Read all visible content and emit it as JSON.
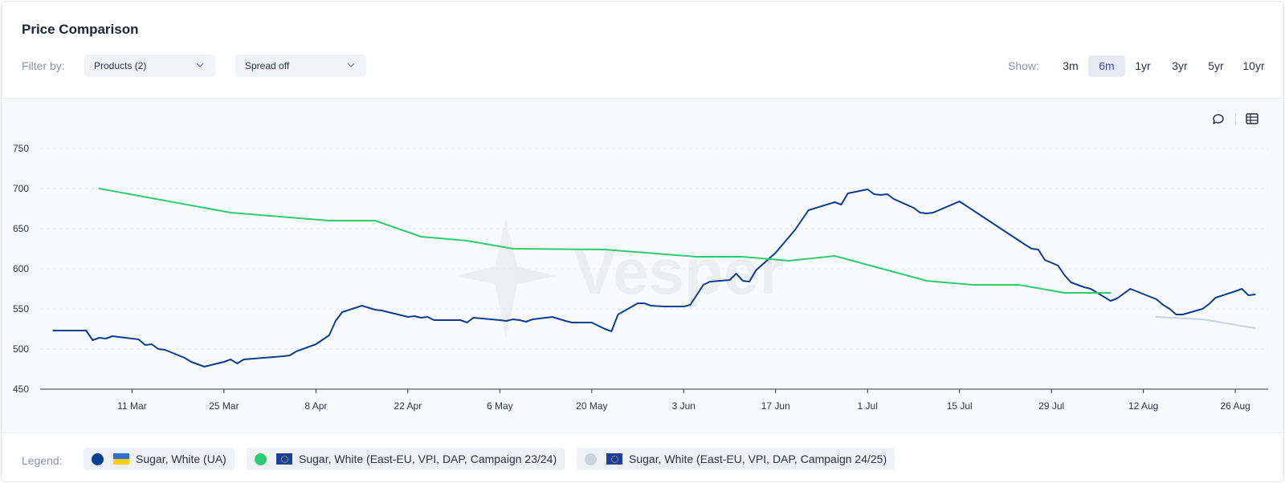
{
  "header": {
    "title": "Price Comparison",
    "filter_label": "Filter by:",
    "products_dropdown": "Products (2)",
    "spread_dropdown": "Spread off",
    "show_label": "Show:",
    "ranges": [
      "3m",
      "6m",
      "1yr",
      "3yr",
      "5yr",
      "10yr"
    ],
    "active_range": "6m"
  },
  "toolbar": {
    "icons": [
      "comment-icon",
      "table-icon"
    ]
  },
  "legend": {
    "label": "Legend:",
    "items": [
      {
        "name": "Sugar, White (UA)",
        "color": "#0b3d91",
        "flag": "ua-flag"
      },
      {
        "name": "Sugar, White (East-EU, VPI, DAP, Campaign 23/24)",
        "color": "#2ecc71",
        "flag": "eu-flag"
      },
      {
        "name": "Sugar, White (East-EU, VPI, DAP, Campaign 24/25)",
        "color": "#c9d3e0",
        "flag": "eu-flag"
      }
    ]
  },
  "watermark": "Vesper",
  "chart_data": {
    "type": "line",
    "title": "",
    "xlabel": "",
    "ylabel": "",
    "ylim": [
      450,
      750
    ],
    "yticks": [
      450,
      500,
      550,
      600,
      650,
      700,
      750
    ],
    "xlim": [
      "2024-02-26",
      "2024-08-31"
    ],
    "xticks": [
      {
        "date": "2024-03-11",
        "label": "11 Mar"
      },
      {
        "date": "2024-03-25",
        "label": "25 Mar"
      },
      {
        "date": "2024-04-08",
        "label": "8 Apr"
      },
      {
        "date": "2024-04-22",
        "label": "22 Apr"
      },
      {
        "date": "2024-05-06",
        "label": "6 May"
      },
      {
        "date": "2024-05-20",
        "label": "20 May"
      },
      {
        "date": "2024-06-03",
        "label": "3 Jun"
      },
      {
        "date": "2024-06-17",
        "label": "17 Jun"
      },
      {
        "date": "2024-07-01",
        "label": "1 Jul"
      },
      {
        "date": "2024-07-15",
        "label": "15 Jul"
      },
      {
        "date": "2024-07-29",
        "label": "29 Jul"
      },
      {
        "date": "2024-08-12",
        "label": "12 Aug"
      },
      {
        "date": "2024-08-26",
        "label": "26 Aug"
      }
    ],
    "grid": true,
    "legend_position": "bottom",
    "series": [
      {
        "name": "Sugar, White (UA)",
        "color": "#0b3d91",
        "points": [
          [
            "2024-02-28",
            523
          ],
          [
            "2024-03-02",
            523
          ],
          [
            "2024-03-04",
            523
          ],
          [
            "2024-03-05",
            511
          ],
          [
            "2024-03-06",
            514
          ],
          [
            "2024-03-07",
            513
          ],
          [
            "2024-03-08",
            516
          ],
          [
            "2024-03-10",
            514
          ],
          [
            "2024-03-12",
            512
          ],
          [
            "2024-03-13",
            505
          ],
          [
            "2024-03-14",
            506
          ],
          [
            "2024-03-15",
            500
          ],
          [
            "2024-03-16",
            499
          ],
          [
            "2024-03-19",
            489
          ],
          [
            "2024-03-20",
            484
          ],
          [
            "2024-03-22",
            478
          ],
          [
            "2024-03-25",
            484
          ],
          [
            "2024-03-26",
            487
          ],
          [
            "2024-03-27",
            482
          ],
          [
            "2024-03-28",
            487
          ],
          [
            "2024-04-03",
            491
          ],
          [
            "2024-04-04",
            492
          ],
          [
            "2024-04-05",
            497
          ],
          [
            "2024-04-08",
            506
          ],
          [
            "2024-04-10",
            517
          ],
          [
            "2024-04-11",
            535
          ],
          [
            "2024-04-12",
            546
          ],
          [
            "2024-04-15",
            554
          ],
          [
            "2024-04-17",
            549
          ],
          [
            "2024-04-18",
            548
          ],
          [
            "2024-04-22",
            540
          ],
          [
            "2024-04-23",
            541
          ],
          [
            "2024-04-24",
            539
          ],
          [
            "2024-04-25",
            540
          ],
          [
            "2024-04-26",
            536
          ],
          [
            "2024-04-29",
            536
          ],
          [
            "2024-04-30",
            536
          ],
          [
            "2024-05-01",
            533
          ],
          [
            "2024-05-02",
            539
          ],
          [
            "2024-05-06",
            536
          ],
          [
            "2024-05-07",
            535
          ],
          [
            "2024-05-08",
            537
          ],
          [
            "2024-05-09",
            536
          ],
          [
            "2024-05-10",
            534
          ],
          [
            "2024-05-11",
            537
          ],
          [
            "2024-05-14",
            540
          ],
          [
            "2024-05-16",
            535
          ],
          [
            "2024-05-17",
            533
          ],
          [
            "2024-05-20",
            533
          ],
          [
            "2024-05-22",
            525
          ],
          [
            "2024-05-23",
            522
          ],
          [
            "2024-05-24",
            543
          ],
          [
            "2024-05-27",
            557
          ],
          [
            "2024-05-28",
            557
          ],
          [
            "2024-05-29",
            554
          ],
          [
            "2024-05-31",
            553
          ],
          [
            "2024-06-03",
            553
          ],
          [
            "2024-06-04",
            555
          ],
          [
            "2024-06-06",
            580
          ],
          [
            "2024-06-07",
            584
          ],
          [
            "2024-06-10",
            586
          ],
          [
            "2024-06-11",
            594
          ],
          [
            "2024-06-12",
            585
          ],
          [
            "2024-06-13",
            584
          ],
          [
            "2024-06-14",
            598
          ],
          [
            "2024-06-17",
            620
          ],
          [
            "2024-06-20",
            649
          ],
          [
            "2024-06-22",
            673
          ],
          [
            "2024-06-26",
            683
          ],
          [
            "2024-06-27",
            680
          ],
          [
            "2024-06-28",
            694
          ],
          [
            "2024-07-01",
            699
          ],
          [
            "2024-07-02",
            693
          ],
          [
            "2024-07-03",
            692
          ],
          [
            "2024-07-04",
            693
          ],
          [
            "2024-07-05",
            687
          ],
          [
            "2024-07-08",
            676
          ],
          [
            "2024-07-09",
            670
          ],
          [
            "2024-07-10",
            669
          ],
          [
            "2024-07-11",
            670
          ],
          [
            "2024-07-15",
            684
          ],
          [
            "2024-07-25",
            630
          ],
          [
            "2024-07-26",
            625
          ],
          [
            "2024-07-27",
            624
          ],
          [
            "2024-07-28",
            611
          ],
          [
            "2024-07-30",
            604
          ],
          [
            "2024-07-31",
            592
          ],
          [
            "2024-08-01",
            583
          ],
          [
            "2024-08-03",
            577
          ],
          [
            "2024-08-04",
            575
          ],
          [
            "2024-08-07",
            560
          ],
          [
            "2024-08-08",
            563
          ],
          [
            "2024-08-10",
            575
          ],
          [
            "2024-08-14",
            562
          ],
          [
            "2024-08-15",
            555
          ],
          [
            "2024-08-16",
            550
          ],
          [
            "2024-08-17",
            543
          ],
          [
            "2024-08-18",
            543
          ],
          [
            "2024-08-21",
            550
          ],
          [
            "2024-08-22",
            556
          ],
          [
            "2024-08-23",
            564
          ],
          [
            "2024-08-26",
            572
          ],
          [
            "2024-08-27",
            575
          ],
          [
            "2024-08-28",
            567
          ],
          [
            "2024-08-29",
            568
          ]
        ]
      },
      {
        "name": "Sugar, White (East-EU, VPI, DAP, Campaign 23/24)",
        "color": "#2ecc71",
        "points": [
          [
            "2024-03-06",
            700
          ],
          [
            "2024-03-26",
            670
          ],
          [
            "2024-04-10",
            660
          ],
          [
            "2024-04-17",
            660
          ],
          [
            "2024-04-24",
            640
          ],
          [
            "2024-05-01",
            635
          ],
          [
            "2024-05-08",
            625
          ],
          [
            "2024-05-22",
            624
          ],
          [
            "2024-06-05",
            615
          ],
          [
            "2024-06-12",
            615
          ],
          [
            "2024-06-19",
            610
          ],
          [
            "2024-06-26",
            616
          ],
          [
            "2024-07-10",
            585
          ],
          [
            "2024-07-17",
            580
          ],
          [
            "2024-07-24",
            580
          ],
          [
            "2024-07-31",
            570
          ],
          [
            "2024-08-07",
            570
          ]
        ]
      },
      {
        "name": "Sugar, White (East-EU, VPI, DAP, Campaign 24/25)",
        "color": "#c9d3e0",
        "points": [
          [
            "2024-08-14",
            540
          ],
          [
            "2024-08-21",
            537
          ],
          [
            "2024-08-29",
            526
          ]
        ]
      }
    ]
  }
}
